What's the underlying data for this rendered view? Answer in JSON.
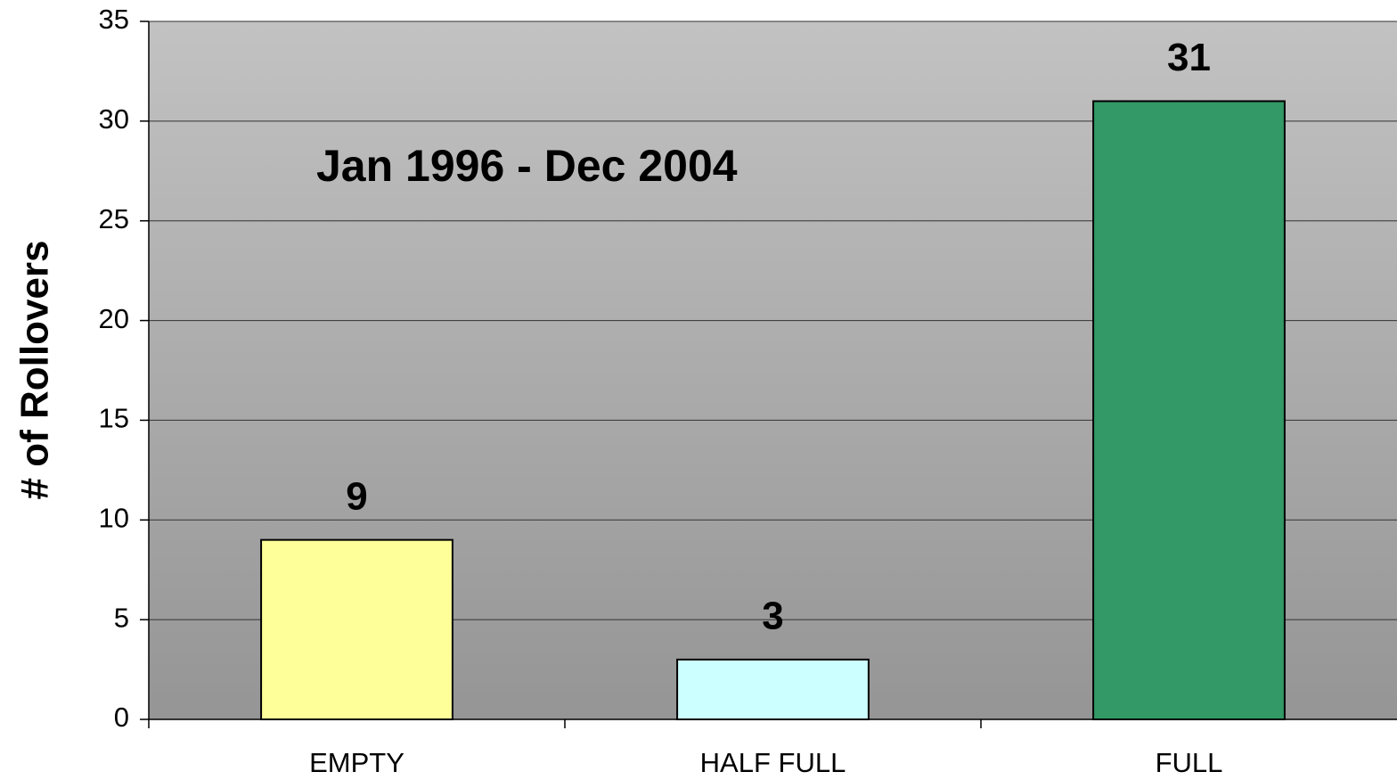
{
  "chart_data": {
    "type": "bar",
    "y_label": "# of Rollovers",
    "annotation": "Jan 1996 - Dec 2004",
    "categories": [
      "EMPTY",
      "HALF FULL",
      "FULL"
    ],
    "values": [
      9,
      3,
      31
    ],
    "colors": [
      "#ffff99",
      "#ccffff",
      "#339966"
    ],
    "ylim": [
      0,
      35
    ],
    "yticks": [
      0,
      5,
      10,
      15,
      20,
      25,
      30,
      35
    ],
    "grid": true
  }
}
